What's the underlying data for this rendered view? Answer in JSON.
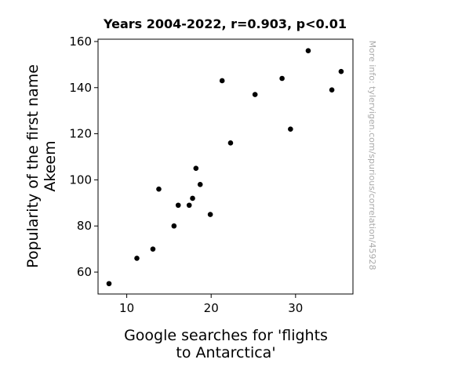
{
  "chart_data": {
    "type": "scatter",
    "title": "Years 2004-2022, r=0.903, p<0.01",
    "xlabel_lines": [
      "Google searches for 'flights",
      "to Antarctica'"
    ],
    "ylabel_lines": [
      "Popularity of the first name",
      "Akeem"
    ],
    "watermark": "More info: tylervigen.com/spurious/correlation/45928",
    "xlim": [
      6.6,
      36.8
    ],
    "ylim": [
      50.5,
      161
    ],
    "xticks": [
      10,
      20,
      30
    ],
    "yticks": [
      60,
      80,
      100,
      120,
      140,
      160
    ],
    "grid": false,
    "marker_color": "#000000",
    "points": [
      {
        "x": 7.9,
        "y": 55
      },
      {
        "x": 11.2,
        "y": 66
      },
      {
        "x": 13.1,
        "y": 70
      },
      {
        "x": 13.8,
        "y": 96
      },
      {
        "x": 15.6,
        "y": 80
      },
      {
        "x": 16.1,
        "y": 89
      },
      {
        "x": 17.4,
        "y": 89
      },
      {
        "x": 17.8,
        "y": 92
      },
      {
        "x": 18.2,
        "y": 105
      },
      {
        "x": 18.7,
        "y": 98
      },
      {
        "x": 19.9,
        "y": 85
      },
      {
        "x": 21.3,
        "y": 143
      },
      {
        "x": 22.3,
        "y": 116
      },
      {
        "x": 25.2,
        "y": 137
      },
      {
        "x": 28.4,
        "y": 144
      },
      {
        "x": 29.4,
        "y": 122
      },
      {
        "x": 31.5,
        "y": 156
      },
      {
        "x": 34.3,
        "y": 139
      },
      {
        "x": 35.4,
        "y": 147
      }
    ]
  }
}
